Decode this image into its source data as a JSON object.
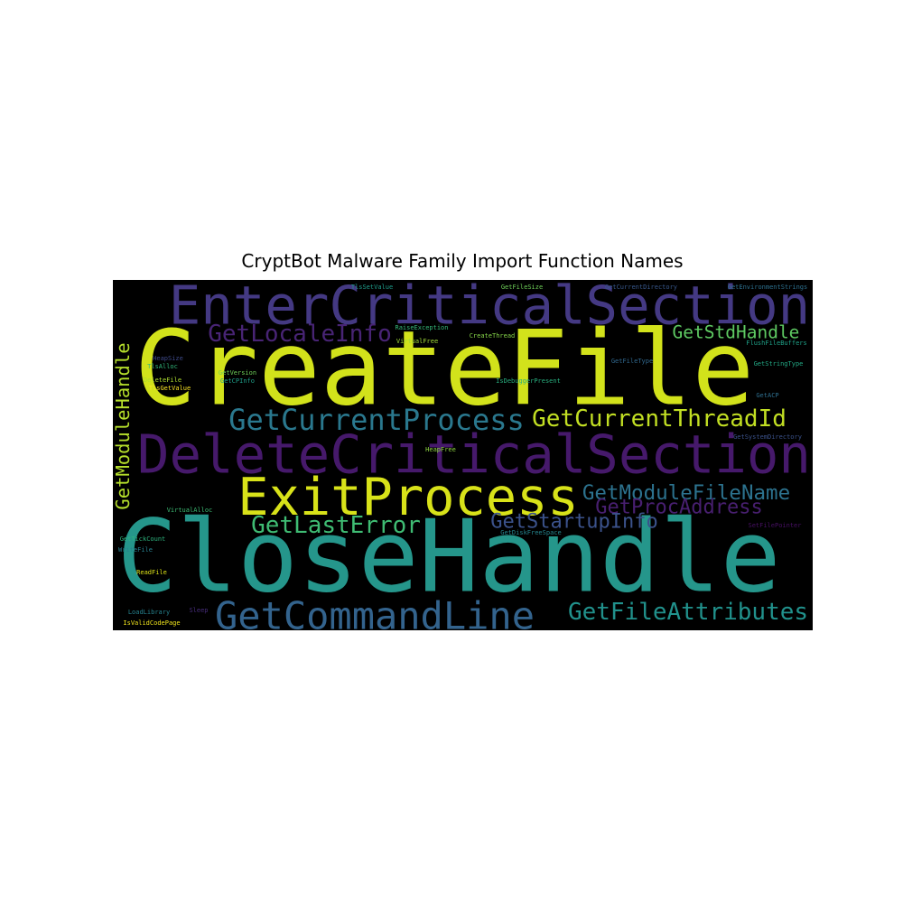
{
  "chart_data": {
    "type": "wordcloud",
    "title": "CryptBot Malware Family Import Function Names",
    "background": "#000000",
    "words": [
      {
        "text": "CreateFile",
        "color": "#d2e21b"
      },
      {
        "text": "CloseHandle",
        "color": "#25968b"
      },
      {
        "text": "DeleteCriticalSection",
        "color": "#46196b"
      },
      {
        "text": "EnterCriticalSection",
        "color": "#443983"
      },
      {
        "text": "ExitProcess",
        "color": "#d8e219"
      },
      {
        "text": "GetCurrentProcess",
        "color": "#2a788e"
      },
      {
        "text": "GetCurrentThreadId",
        "color": "#c2df23"
      },
      {
        "text": "GetLocaleInfo",
        "color": "#482475"
      },
      {
        "text": "GetStdHandle",
        "color": "#5ec962"
      },
      {
        "text": "GetModuleHandle",
        "color": "#b5de2b"
      },
      {
        "text": "GetModuleFileName",
        "color": "#2c728e"
      },
      {
        "text": "GetProcAddress",
        "color": "#481f70"
      },
      {
        "text": "GetStartupInfo",
        "color": "#3b528b"
      },
      {
        "text": "GetLastError",
        "color": "#3fbc73"
      },
      {
        "text": "GetCommandLine",
        "color": "#33638d"
      },
      {
        "text": "GetFileAttributes",
        "color": "#21918c"
      },
      {
        "text": "HeapSize",
        "color": "#3e4a89"
      },
      {
        "text": "TlsAlloc",
        "color": "#31b57b"
      },
      {
        "text": "DeleteFile",
        "color": "#addc30"
      },
      {
        "text": "TlsGetValue",
        "color": "#fde725"
      },
      {
        "text": "GetVersion",
        "color": "#6ece58"
      },
      {
        "text": "GetCPInfo",
        "color": "#1f9e89"
      },
      {
        "text": "GetTickCount",
        "color": "#2db27d"
      },
      {
        "text": "WriteFile",
        "color": "#277f8e"
      },
      {
        "text": "ReadFile",
        "color": "#dde318"
      },
      {
        "text": "LoadLibrary",
        "color": "#26828e"
      },
      {
        "text": "IsValidCodePage",
        "color": "#f1e51d"
      },
      {
        "text": "Sleep",
        "color": "#472d7b"
      },
      {
        "text": "GetFileSize",
        "color": "#6ece58"
      },
      {
        "text": "GetCurrentDirectory",
        "color": "#38588c"
      },
      {
        "text": "GetEnvironmentStrings",
        "color": "#2d708e"
      },
      {
        "text": "RaiseException",
        "color": "#35b779"
      },
      {
        "text": "VirtualFree",
        "color": "#a0da39"
      },
      {
        "text": "CreateThread",
        "color": "#86d549"
      },
      {
        "text": "FlushFileBuffers",
        "color": "#1fa187"
      },
      {
        "text": "GetStringType",
        "color": "#22a884"
      },
      {
        "text": "GetFileType",
        "color": "#31688e"
      },
      {
        "text": "HeapFree",
        "color": "#90d743"
      },
      {
        "text": "IsDebuggerPresent",
        "color": "#29af7f"
      },
      {
        "text": "GetACP",
        "color": "#2e6f8e"
      },
      {
        "text": "SetFilePointer",
        "color": "#471063"
      },
      {
        "text": "VirtualAlloc",
        "color": "#3dbc74"
      },
      {
        "text": "GetDiskFreeSpace",
        "color": "#25858e"
      },
      {
        "text": "GetSystemDirectory",
        "color": "#3b528b"
      },
      {
        "text": "TlsSetValue",
        "color": "#1e9b8a"
      }
    ]
  }
}
